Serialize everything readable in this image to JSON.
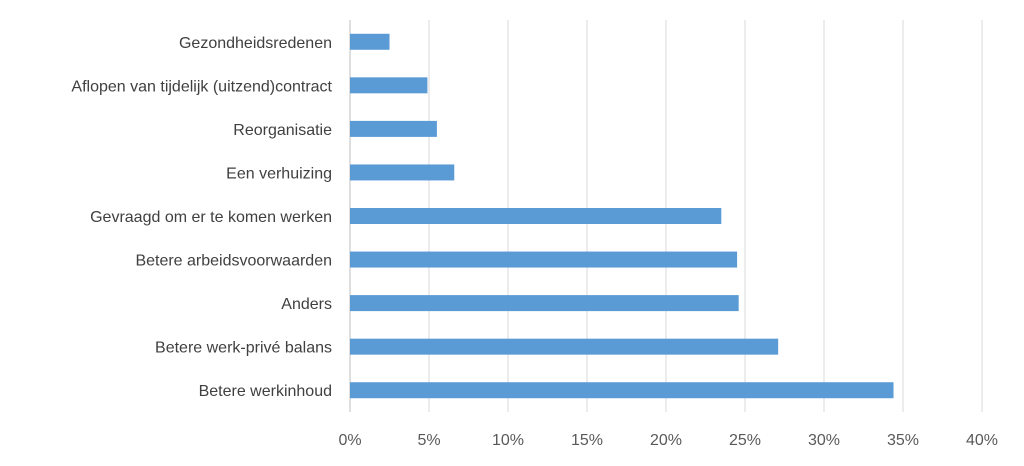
{
  "chart_data": {
    "type": "bar",
    "orientation": "horizontal",
    "title": "",
    "xlabel": "",
    "ylabel": "",
    "categories": [
      "Gezondheidsredenen",
      "Aflopen van tijdelijk (uitzend)contract",
      "Reorganisatie",
      "Een verhuizing",
      "Gevraagd om er te komen werken",
      "Betere arbeidsvoorwaarden",
      "Anders",
      "Betere werk-privé balans",
      "Betere werkinhoud"
    ],
    "values": [
      2.5,
      4.9,
      5.5,
      6.6,
      23.5,
      24.5,
      24.6,
      27.1,
      34.4
    ],
    "unit": "%",
    "xlim": [
      0,
      40
    ],
    "xticks": [
      "0%",
      "5%",
      "10%",
      "15%",
      "20%",
      "25%",
      "30%",
      "35%",
      "40%"
    ],
    "grid": true,
    "legend": "none",
    "bar_color": "#5B9BD5",
    "grid_color": "#D9D9D9"
  }
}
